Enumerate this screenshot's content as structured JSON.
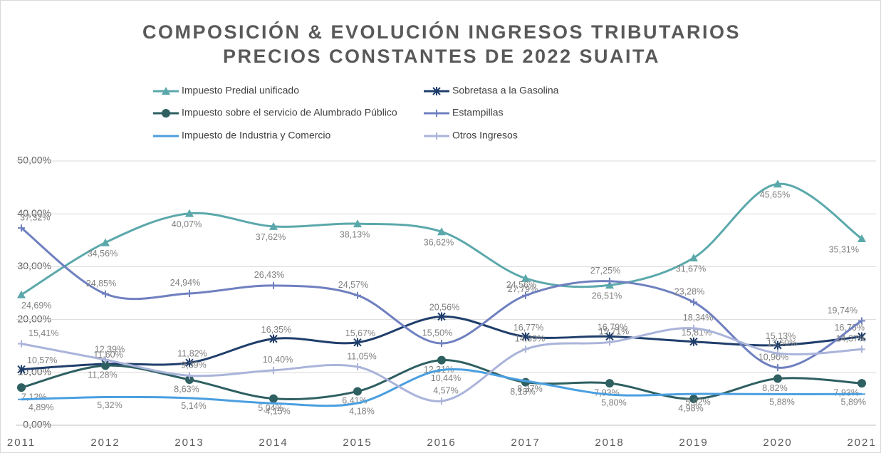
{
  "chart_data": {
    "type": "line",
    "title": "COMPOSICIÓN & EVOLUCIÓN INGRESOS TRIBUTARIOS PRECIOS CONSTANTES DE 2022 SUAITA",
    "categories": [
      "2011",
      "2012",
      "2013",
      "2014",
      "2015",
      "2016",
      "2017",
      "2018",
      "2019",
      "2020",
      "2021"
    ],
    "ylim": [
      0,
      50
    ],
    "yticks": [
      {
        "value": 0,
        "label": "0,00%"
      },
      {
        "value": 10,
        "label": "10,00%"
      },
      {
        "value": 20,
        "label": "20,00%"
      },
      {
        "value": 30,
        "label": "30,00%"
      },
      {
        "value": 40,
        "label": "40,00%"
      },
      {
        "value": 50,
        "label": "50,00%"
      }
    ],
    "grid": true,
    "series": [
      {
        "name": "Impuesto Predial unificado",
        "color": "#5ba8ab",
        "marker": "triangle",
        "values": [
          24.69,
          34.56,
          40.07,
          37.62,
          38.13,
          36.62,
          27.79,
          26.51,
          31.67,
          45.65,
          35.31
        ],
        "value_labels": [
          "24,69%",
          "34,56%",
          "40,07%",
          "37,62%",
          "38,13%",
          "36,62%",
          "27,79%",
          "26,51%",
          "31,67%",
          "45,65%",
          "35,31%"
        ]
      },
      {
        "name": "Sobretasa a la Gasolina",
        "color": "#1f3e6b",
        "marker": "asterisk",
        "values": [
          10.57,
          11.6,
          11.82,
          16.35,
          15.67,
          20.56,
          16.77,
          16.79,
          15.81,
          15.13,
          16.76
        ],
        "value_labels": [
          "10,57%",
          "11,60%",
          "11,82%",
          "16,35%",
          "15,67%",
          "20,56%",
          "16,77%",
          "16,79%",
          "15,81%",
          "15,13%",
          "16,76%"
        ]
      },
      {
        "name": "Impuesto sobre el servicio de Alumbrado Público",
        "color": "#2e5f61",
        "marker": "circle",
        "values": [
          7.12,
          11.28,
          8.63,
          5.04,
          6.41,
          12.31,
          8.13,
          7.93,
          4.98,
          8.82,
          7.93
        ],
        "value_labels": [
          "7,12%",
          "11,28%",
          "8,63%",
          "5,04%",
          "6,41%",
          "12,31%",
          "8,13%",
          "7,93%",
          "4,98%",
          "8,82%",
          "7,93%"
        ]
      },
      {
        "name": "Estampillas",
        "color": "#6f80c0",
        "marker": "plus",
        "values": [
          37.32,
          24.85,
          24.94,
          26.43,
          24.57,
          15.5,
          24.56,
          27.25,
          23.28,
          10.9,
          19.74
        ],
        "value_labels": [
          "37,32%",
          "24,85%",
          "24,94%",
          "26,43%",
          "24,57%",
          "15,50%",
          "24,56%",
          "27,25%",
          "23,28%",
          "10,90%",
          "19,74%"
        ]
      },
      {
        "name": "Impuesto de Industria y Comercio",
        "color": "#4a9fe0",
        "marker": "dash",
        "values": [
          4.89,
          5.32,
          5.14,
          4.15,
          4.18,
          10.44,
          8.37,
          5.8,
          5.92,
          5.88,
          5.89
        ],
        "value_labels": [
          "4,89%",
          "5,32%",
          "5,14%",
          "4,15%",
          "4,18%",
          "10,44%",
          "8,37%",
          "5,80%",
          "5,92%",
          "5,88%",
          "5,89%"
        ]
      },
      {
        "name": "Otros Ingresos",
        "color": "#aab4da",
        "marker": "plus",
        "values": [
          15.41,
          12.39,
          9.39,
          10.4,
          11.05,
          4.57,
          14.39,
          15.71,
          18.34,
          13.6,
          14.37
        ],
        "value_labels": [
          "15,41%",
          "12,39%",
          "9,39%",
          "10,40%",
          "11,05%",
          "4,57%",
          "14,39%",
          "15,71%",
          "18,34%",
          "13,60%",
          "14,37%"
        ]
      }
    ]
  }
}
